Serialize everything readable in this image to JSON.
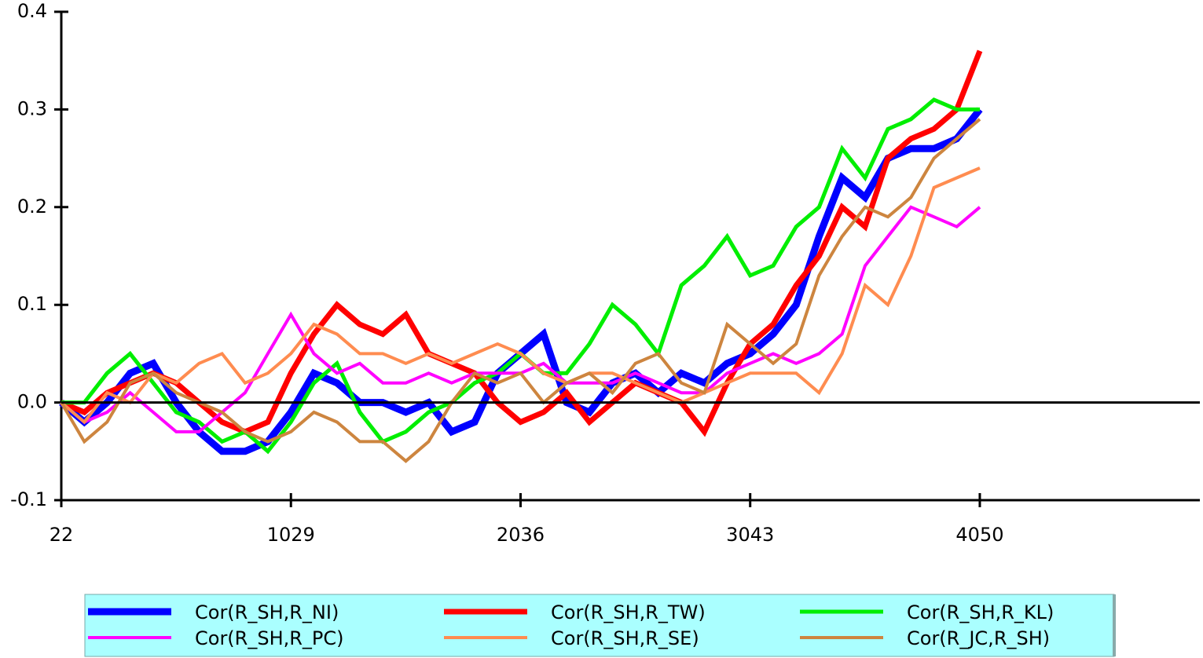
{
  "chart_data": {
    "type": "line",
    "x": [
      22,
      123,
      223,
      324,
      425,
      526,
      626,
      727,
      828,
      928,
      1029,
      1130,
      1231,
      1331,
      1432,
      1533,
      1633,
      1734,
      1835,
      1935,
      2036,
      2137,
      2238,
      2338,
      2439,
      2540,
      2640,
      2741,
      2842,
      2942,
      3043,
      3144,
      3245,
      3345,
      3446,
      3547,
      3647,
      3748,
      3849,
      3949,
      4050
    ],
    "xlim": [
      22,
      5015
    ],
    "xticks": [
      22,
      1029,
      2036,
      3043,
      4050
    ],
    "ylim": [
      -0.1,
      0.4
    ],
    "yticks": [
      {
        "value": -0.1,
        "label": "-0.1"
      },
      {
        "value": 0,
        "label": "0.0"
      },
      0.1,
      0.2,
      0.3,
      0.4
    ],
    "series": [
      {
        "name": "Cor(R_SH,R_NI)",
        "color": "#0000ff",
        "values": [
          0,
          -0.02,
          0.0,
          0.03,
          0.04,
          0.0,
          -0.03,
          -0.05,
          -0.05,
          -0.04,
          -0.01,
          0.03,
          0.02,
          0.0,
          0.0,
          -0.01,
          0.0,
          -0.03,
          -0.02,
          0.03,
          0.05,
          0.07,
          0.0,
          -0.01,
          0.02,
          0.03,
          0.01,
          0.03,
          0.02,
          0.04,
          0.05,
          0.07,
          0.1,
          0.17,
          0.23,
          0.21,
          0.25,
          0.26,
          0.26,
          0.27,
          0.3
        ]
      },
      {
        "name": "Cor(R_SH,R_TW)",
        "color": "#ff0000",
        "values": [
          0,
          -0.01,
          0.01,
          0.02,
          0.03,
          0.02,
          0.0,
          -0.02,
          -0.03,
          -0.02,
          0.03,
          0.07,
          0.1,
          0.08,
          0.07,
          0.09,
          0.05,
          0.04,
          0.03,
          0.0,
          -0.02,
          -0.01,
          0.01,
          -0.02,
          0.0,
          0.02,
          0.01,
          0.0,
          -0.03,
          0.02,
          0.06,
          0.08,
          0.12,
          0.15,
          0.2,
          0.18,
          0.25,
          0.27,
          0.28,
          0.3,
          0.36
        ]
      },
      {
        "name": "Cor(R_SH,R_KL)",
        "color": "#00ee00",
        "values": [
          0,
          0.0,
          0.03,
          0.05,
          0.02,
          -0.01,
          -0.02,
          -0.04,
          -0.03,
          -0.05,
          -0.02,
          0.02,
          0.04,
          -0.01,
          -0.04,
          -0.03,
          -0.01,
          0.0,
          0.02,
          0.03,
          0.05,
          0.03,
          0.03,
          0.06,
          0.1,
          0.08,
          0.05,
          0.12,
          0.14,
          0.17,
          0.13,
          0.14,
          0.18,
          0.2,
          0.26,
          0.23,
          0.28,
          0.29,
          0.31,
          0.3,
          0.3
        ]
      },
      {
        "name": "Cor(R_SH,R_PC)",
        "color": "#ff00ff",
        "values": [
          0,
          -0.02,
          -0.01,
          0.01,
          -0.01,
          -0.03,
          -0.03,
          -0.01,
          0.01,
          0.05,
          0.09,
          0.05,
          0.03,
          0.04,
          0.02,
          0.02,
          0.03,
          0.02,
          0.03,
          0.03,
          0.03,
          0.04,
          0.02,
          0.02,
          0.02,
          0.03,
          0.02,
          0.01,
          0.01,
          0.03,
          0.04,
          0.05,
          0.04,
          0.05,
          0.07,
          0.14,
          0.17,
          0.2,
          0.19,
          0.18,
          0.2
        ]
      },
      {
        "name": "Cor(R_SH,R_SE)",
        "color": "#ff8c50",
        "values": [
          0,
          -0.02,
          0.01,
          0.0,
          0.03,
          0.02,
          0.04,
          0.05,
          0.02,
          0.03,
          0.05,
          0.08,
          0.07,
          0.05,
          0.05,
          0.04,
          0.05,
          0.04,
          0.05,
          0.06,
          0.05,
          0.03,
          0.02,
          0.03,
          0.03,
          0.02,
          0.01,
          0.0,
          0.01,
          0.02,
          0.03,
          0.03,
          0.03,
          0.01,
          0.05,
          0.12,
          0.1,
          0.15,
          0.22,
          0.23,
          0.24
        ]
      },
      {
        "name": "Cor(R_JC,R_SH)",
        "color": "#cd853f",
        "values": [
          0,
          -0.04,
          -0.02,
          0.02,
          0.03,
          0.01,
          0.0,
          -0.01,
          -0.03,
          -0.04,
          -0.03,
          -0.01,
          -0.02,
          -0.04,
          -0.04,
          -0.06,
          -0.04,
          0.0,
          0.03,
          0.02,
          0.03,
          0.0,
          0.02,
          0.03,
          0.01,
          0.04,
          0.05,
          0.02,
          0.01,
          0.08,
          0.06,
          0.04,
          0.06,
          0.13,
          0.17,
          0.2,
          0.19,
          0.21,
          0.25,
          0.27,
          0.29
        ]
      }
    ]
  }
}
